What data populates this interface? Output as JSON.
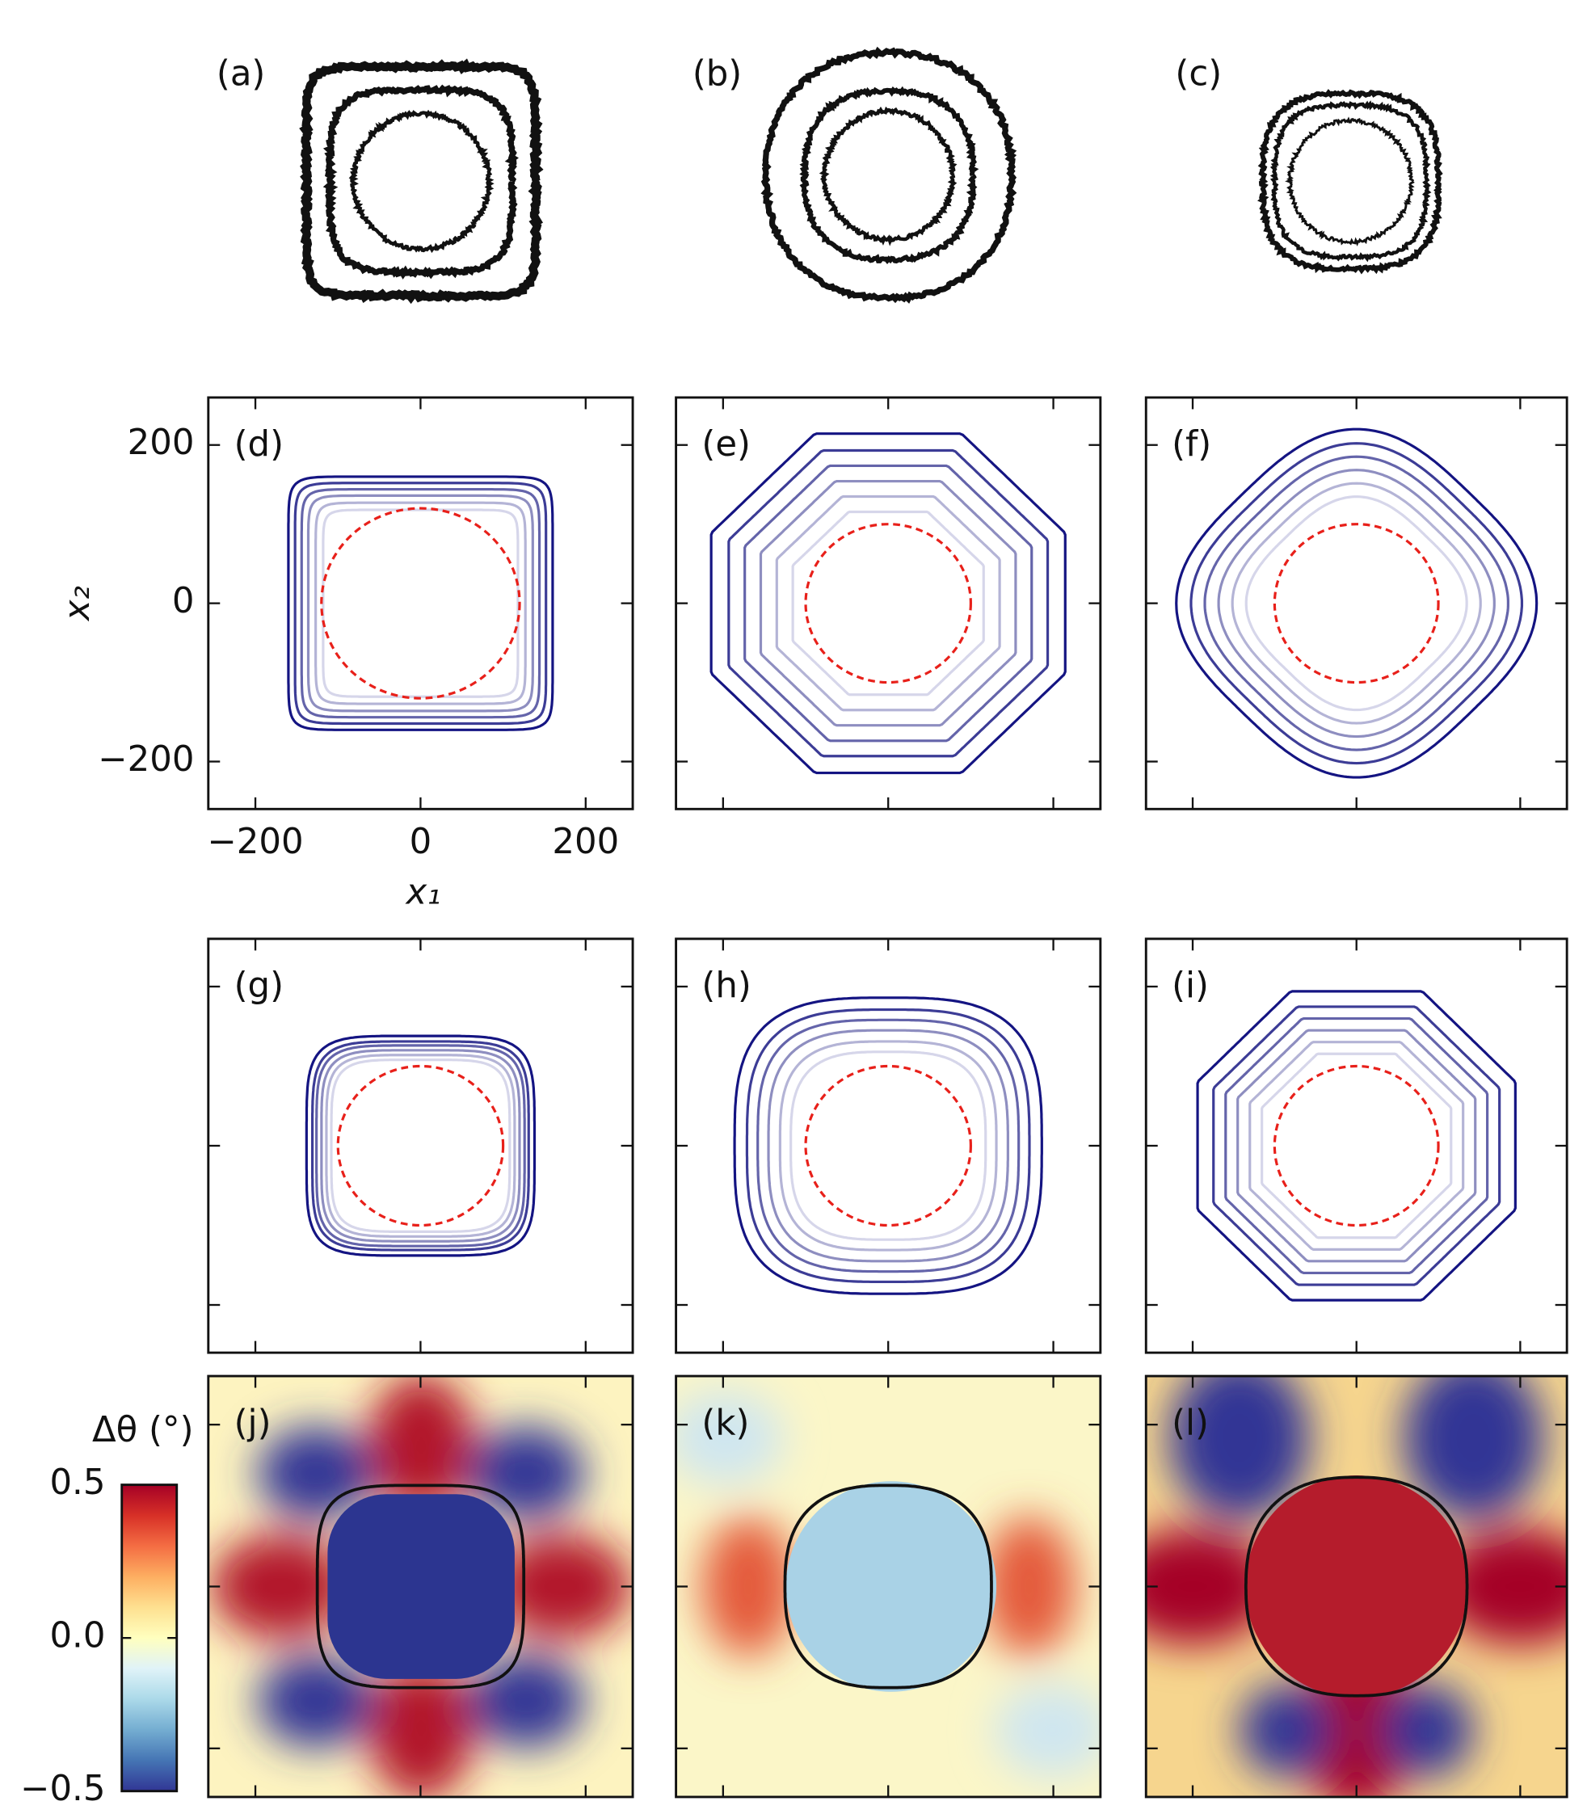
{
  "chart_data": {
    "type": "contour",
    "panels": [
      "(a)",
      "(b)",
      "(c)",
      "(d)",
      "(e)",
      "(f)",
      "(g)",
      "(h)",
      "(i)",
      "(j)",
      "(k)",
      "(l)"
    ],
    "xlabel": "x₁",
    "ylabel": "x₂",
    "xlim": [
      -257,
      257
    ],
    "ylim": [
      -260,
      260
    ],
    "xticks": [
      {
        "value": -200,
        "label": "−200"
      },
      0,
      200
    ],
    "yticks": [
      200,
      0,
      {
        "value": -200,
        "label": "−200"
      }
    ],
    "contour_colors": [
      "#d6d6ea",
      "#b4b4d6",
      "#8e8ec0",
      "#6464aa",
      "#3c3c96",
      "#141482"
    ],
    "circle_color": "#e8201a",
    "colorbar": {
      "label": "Δθ (°)",
      "lim": [
        -0.5,
        0.5
      ],
      "ticks": [
        0.5,
        {
          "value": 0,
          "label": "0.0"
        },
        {
          "value": -0.5,
          "label": "−0.5"
        }
      ],
      "colors": [
        "#313695",
        "#4575b4",
        "#74add1",
        "#abd9e9",
        "#e0f3f8",
        "#ffffbf",
        "#fee090",
        "#fdae61",
        "#f46d43",
        "#d73027",
        "#a50026"
      ]
    }
  }
}
